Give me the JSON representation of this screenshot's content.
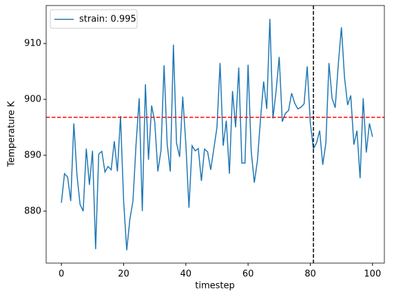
{
  "chart_data": {
    "type": "line",
    "x_label": "timestep",
    "y_label": "Temperature K",
    "x": [
      0,
      1,
      2,
      3,
      4,
      5,
      6,
      7,
      8,
      9,
      10,
      11,
      12,
      13,
      14,
      15,
      16,
      17,
      18,
      19,
      20,
      21,
      22,
      23,
      24,
      25,
      26,
      27,
      28,
      29,
      30,
      31,
      32,
      33,
      34,
      35,
      36,
      37,
      38,
      39,
      40,
      41,
      42,
      43,
      44,
      45,
      46,
      47,
      48,
      49,
      50,
      51,
      52,
      53,
      54,
      55,
      56,
      57,
      58,
      59,
      60,
      61,
      62,
      63,
      64,
      65,
      66,
      67,
      68,
      69,
      70,
      71,
      72,
      73,
      74,
      75,
      76,
      77,
      78,
      79,
      80,
      81,
      82,
      83,
      84,
      85,
      86,
      87,
      88,
      89,
      90,
      91,
      92,
      93,
      94,
      95,
      96,
      97,
      98,
      99,
      100
    ],
    "series": [
      {
        "name": "strain: 0.995",
        "color": "#1f77b4",
        "values": [
          881.5,
          886.7,
          886.1,
          881.8,
          895.7,
          886.5,
          881.2,
          880.0,
          891.2,
          884.7,
          890.8,
          873.2,
          890.2,
          890.7,
          887.0,
          888.0,
          887.4,
          892.5,
          887.1,
          897.0,
          881.8,
          873.0,
          878.5,
          881.8,
          892.0,
          900.2,
          880.0,
          902.7,
          889.2,
          898.9,
          896.0,
          887.1,
          890.8,
          906.1,
          892.0,
          887.1,
          909.8,
          892.2,
          889.7,
          900.5,
          892.0,
          880.6,
          891.7,
          890.8,
          891.2,
          885.4,
          891.1,
          890.6,
          887.4,
          891.2,
          895.0,
          906.5,
          891.7,
          896.2,
          886.7,
          901.5,
          895.0,
          905.7,
          888.6,
          888.6,
          906.2,
          890.8,
          885.1,
          889.0,
          896.5,
          903.2,
          898.3,
          914.4,
          896.6,
          901.5,
          907.6,
          896.0,
          897.5,
          898.0,
          901.1,
          899.3,
          898.3,
          898.6,
          899.2,
          905.9,
          895.8,
          891.2,
          892.2,
          894.4,
          888.3,
          892.2,
          906.5,
          900.2,
          898.5,
          906.3,
          912.9,
          903.9,
          899.0,
          900.7,
          891.9,
          894.4,
          885.9,
          900.2,
          890.5,
          895.7,
          893.3
        ]
      }
    ],
    "hline": {
      "value": 896.8,
      "color": "#ff0000"
    },
    "vline": {
      "value": 81,
      "color": "#000000"
    },
    "xlim": [
      -4.9,
      103.8
    ],
    "ylim": [
      870.7,
      916.8
    ],
    "xticks": [
      0,
      20,
      40,
      60,
      80,
      100
    ],
    "yticks": [
      880,
      890,
      900,
      910
    ],
    "legend": "upper left"
  }
}
